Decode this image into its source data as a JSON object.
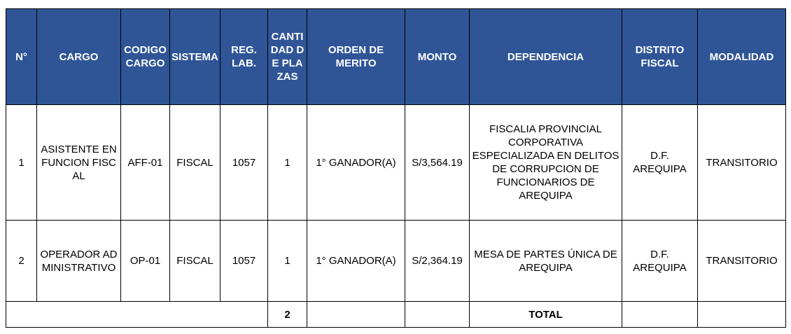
{
  "table": {
    "headers": [
      "N°",
      "CARGO",
      "CODIGO CARGO",
      "SISTEMA",
      "REG. LAB.",
      "CANTIDAD DE PLAZAS",
      "ORDEN DE MERITO",
      "MONTO",
      "DEPENDENCIA",
      "DISTRITO FISCAL",
      "MODALIDAD"
    ],
    "rows": [
      [
        "1",
        "ASISTENTE EN FUNCION FISCAL",
        "AFF-01",
        "FISCAL",
        "1057",
        "1",
        "1° GANADOR(A)",
        "S/3,564.19",
        "FISCALIA PROVINCIAL CORPORATIVA ESPECIALIZADA EN DELITOS DE CORRUPCION DE FUNCIONARIOS DE AREQUIPA",
        "D.F. AREQUIPA",
        "TRANSITORIO"
      ],
      [
        "2",
        "OPERADOR ADMINISTRATIVO",
        "OP-01",
        "FISCAL",
        "1057",
        "1",
        "1° GANADOR(A)",
        "S/2,364.19",
        "MESA DE PARTES ÚNICA DE AREQUIPA",
        "D.F. AREQUIPA",
        "TRANSITORIO"
      ]
    ],
    "total": {
      "quantity": "2",
      "label": "TOTAL"
    }
  }
}
